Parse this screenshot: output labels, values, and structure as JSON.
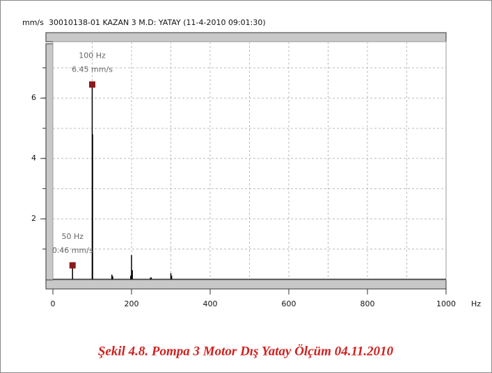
{
  "chart_data": {
    "type": "spectrum",
    "title": "30010138-01  KAZAN 3 M.D: YATAY (11-4-2010 09:01:30)",
    "y_label": "mm/s",
    "x_label": "Hz",
    "x": [
      50,
      100,
      101,
      150,
      152,
      198,
      200,
      202,
      248,
      250,
      300,
      302
    ],
    "values": [
      0.46,
      6.45,
      4.8,
      0.15,
      0.1,
      0.12,
      0.8,
      0.3,
      0.05,
      0.06,
      0.2,
      0.12
    ],
    "color": "#000000",
    "xlim": [
      0,
      1000
    ],
    "xticks": [
      0,
      200,
      400,
      600,
      800,
      1000
    ],
    "xgrid": [
      100,
      200,
      300,
      400,
      500,
      600,
      700,
      800,
      900
    ],
    "ylim": [
      0,
      7.8
    ],
    "yticks": [
      2,
      4,
      6
    ],
    "ygrid": [
      1,
      2,
      3,
      4,
      5,
      6,
      7
    ],
    "grid": true,
    "markers": [
      {
        "x": 50,
        "y": 0.46,
        "labels": [
          "50 Hz",
          "0.46 mm/s"
        ],
        "color": "#8b1a1a"
      },
      {
        "x": 100,
        "y": 6.45,
        "labels": [
          "100 Hz",
          "6.45 mm/s"
        ],
        "color": "#8b1a1a"
      }
    ],
    "caption": "Şekil 4.8. Pompa 3 Motor Dış Yatay Ölçüm 04.11.2010"
  }
}
